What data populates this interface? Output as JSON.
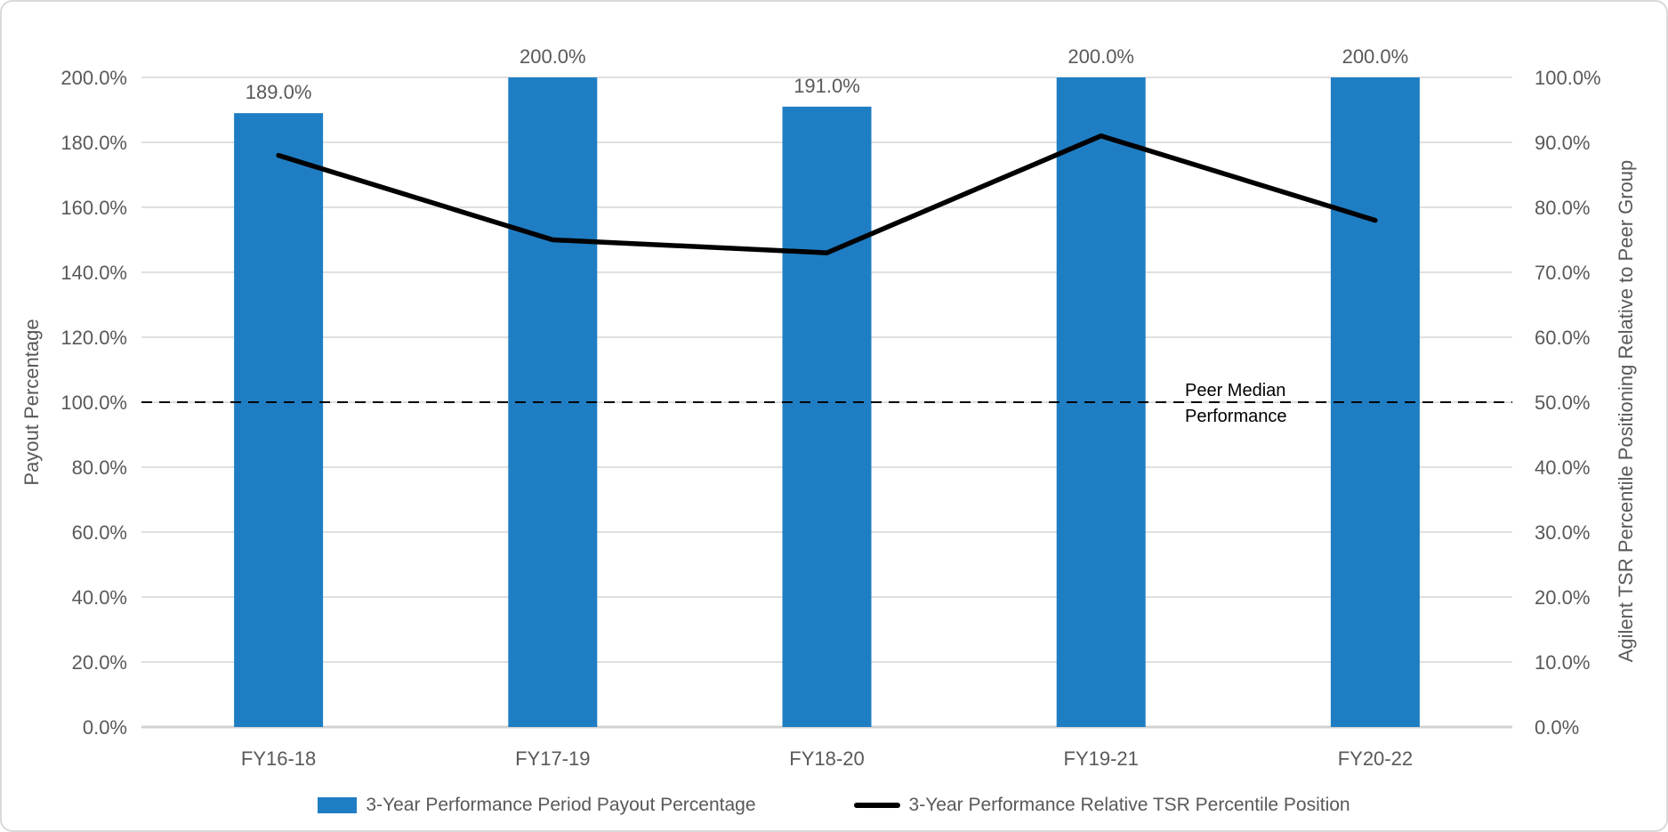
{
  "chart_data": {
    "type": "combo",
    "title": "",
    "categories": [
      "FY16-18",
      "FY17-19",
      "FY18-20",
      "FY19-21",
      "FY20-22"
    ],
    "series": [
      {
        "name": "3-Year Performance Period Payout Percentage",
        "type": "bar",
        "axis": "left",
        "values": [
          189.0,
          200.0,
          191.0,
          200.0,
          200.0
        ],
        "data_labels": [
          "189.0%",
          "200.0%",
          "191.0%",
          "200.0%",
          "200.0%"
        ],
        "color": "#1F7EC3"
      },
      {
        "name": "3-Year Performance Relative TSR Percentile Position",
        "type": "line",
        "axis": "right",
        "values": [
          88,
          75,
          73,
          91,
          78
        ],
        "color": "#000000"
      }
    ],
    "left_axis": {
      "title": "Payout Percentage",
      "min": 0,
      "max": 200,
      "step": 20,
      "tick_labels": [
        "0.0%",
        "20.0%",
        "40.0%",
        "60.0%",
        "80.0%",
        "100.0%",
        "120.0%",
        "140.0%",
        "160.0%",
        "180.0%",
        "200.0%"
      ]
    },
    "right_axis": {
      "title": "Agilent TSR Percentile Positioning Relative to Peer Group",
      "min": 0,
      "max": 100,
      "step": 10,
      "tick_labels": [
        "0.0%",
        "10.0%",
        "20.0%",
        "30.0%",
        "40.0%",
        "50.0%",
        "60.0%",
        "70.0%",
        "80.0%",
        "90.0%",
        "100.0%"
      ]
    },
    "annotation": {
      "label": [
        "Peer Median",
        "Performance"
      ],
      "left_value": 100,
      "right_value": 50,
      "style": "dashed"
    },
    "legend_position": "bottom",
    "grid": "horizontal",
    "colors": {
      "bar": "#1F7EC3",
      "line": "#000000",
      "text": "#595959",
      "gridline": "#DCDCDC",
      "axis_line": "#D2D2D2",
      "annotation_text": "#000000",
      "background": "#FFFFFF",
      "border": "#D9D9D9"
    }
  }
}
